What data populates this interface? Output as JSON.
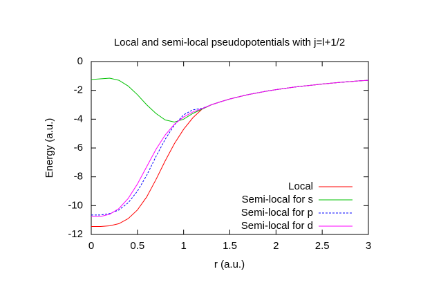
{
  "chart_data": {
    "type": "line",
    "title": "Local and semi-local pseudopotentials with j=l+1/2",
    "xlabel": "r (a.u.)",
    "ylabel": "Energy (a.u.)",
    "x": [
      0,
      0.1,
      0.2,
      0.3,
      0.4,
      0.5,
      0.6,
      0.7,
      0.8,
      0.9,
      1.0,
      1.1,
      1.2,
      1.3,
      1.4,
      1.5,
      1.6,
      1.7,
      1.8,
      1.9,
      2.0,
      2.1,
      2.2,
      2.3,
      2.4,
      2.5,
      2.6,
      2.7,
      2.8,
      2.9,
      3.0
    ],
    "series": [
      {
        "name": "Local",
        "color": "#ff0000",
        "dashed": false,
        "values": [
          -11.45,
          -11.45,
          -11.4,
          -11.25,
          -10.9,
          -10.3,
          -9.4,
          -8.2,
          -6.9,
          -5.7,
          -4.7,
          -3.9,
          -3.3,
          -3.0,
          -2.79,
          -2.6,
          -2.44,
          -2.29,
          -2.17,
          -2.05,
          -1.95,
          -1.86,
          -1.77,
          -1.7,
          -1.63,
          -1.56,
          -1.5,
          -1.44,
          -1.39,
          -1.34,
          -1.3
        ]
      },
      {
        "name": "Semi-local for s",
        "color": "#00c000",
        "dashed": false,
        "values": [
          -1.25,
          -1.2,
          -1.15,
          -1.3,
          -1.7,
          -2.3,
          -3.0,
          -3.6,
          -4.05,
          -4.2,
          -4.0,
          -3.6,
          -3.3,
          -3.0,
          -2.79,
          -2.6,
          -2.44,
          -2.29,
          -2.17,
          -2.05,
          -1.95,
          -1.86,
          -1.77,
          -1.7,
          -1.63,
          -1.56,
          -1.5,
          -1.44,
          -1.39,
          -1.34,
          -1.3
        ]
      },
      {
        "name": "Semi-local for p",
        "color": "#0000ff",
        "dashed": true,
        "values": [
          -10.65,
          -10.65,
          -10.55,
          -10.3,
          -9.8,
          -9.0,
          -7.9,
          -6.6,
          -5.4,
          -4.4,
          -3.7,
          -3.35,
          -3.25,
          -3.0,
          -2.79,
          -2.6,
          -2.44,
          -2.29,
          -2.17,
          -2.05,
          -1.95,
          -1.86,
          -1.77,
          -1.7,
          -1.63,
          -1.56,
          -1.5,
          -1.44,
          -1.39,
          -1.34,
          -1.3
        ]
      },
      {
        "name": "Semi-local for d",
        "color": "#ff00ff",
        "dashed": false,
        "values": [
          -10.75,
          -10.75,
          -10.6,
          -10.2,
          -9.5,
          -8.5,
          -7.3,
          -6.1,
          -5.1,
          -4.35,
          -3.85,
          -3.5,
          -3.27,
          -3.0,
          -2.79,
          -2.6,
          -2.44,
          -2.29,
          -2.17,
          -2.05,
          -1.95,
          -1.86,
          -1.77,
          -1.7,
          -1.63,
          -1.56,
          -1.5,
          -1.44,
          -1.39,
          -1.34,
          -1.3
        ]
      }
    ],
    "xlim": [
      0,
      3
    ],
    "ylim": [
      -12,
      0
    ],
    "xticks": [
      0,
      0.5,
      1,
      1.5,
      2,
      2.5,
      3
    ],
    "yticks": [
      -12,
      -10,
      -8,
      -6,
      -4,
      -2,
      0
    ],
    "grid": false,
    "legend": "bottom-right"
  }
}
